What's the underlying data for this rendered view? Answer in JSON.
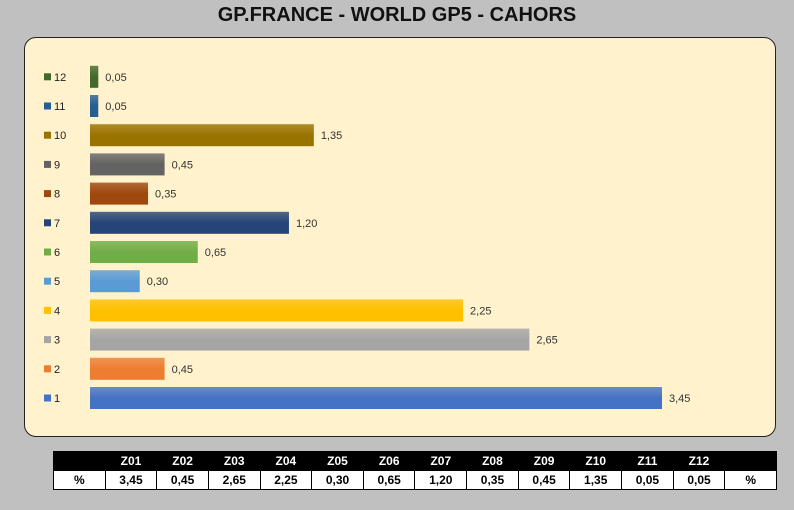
{
  "title": "GP.FRANCE - WORLD GP5  - CAHORS",
  "chart_data": {
    "type": "bar",
    "orientation": "horizontal",
    "categories": [
      "1",
      "2",
      "3",
      "4",
      "5",
      "6",
      "7",
      "8",
      "9",
      "10",
      "11",
      "12"
    ],
    "values": [
      3.45,
      0.45,
      2.65,
      2.25,
      0.3,
      0.65,
      1.2,
      0.35,
      0.45,
      1.35,
      0.05,
      0.05
    ],
    "data_labels": [
      "3,45",
      "0,45",
      "2,65",
      "2,25",
      "0,30",
      "0,65",
      "1,20",
      "0,35",
      "0,45",
      "1,35",
      "0,05",
      "0,05"
    ],
    "colors": [
      "#4472c4",
      "#ed7d31",
      "#a5a5a5",
      "#ffc000",
      "#5b9bd5",
      "#70ad47",
      "#264478",
      "#9e480e",
      "#636363",
      "#997300",
      "#255e91",
      "#43682b"
    ],
    "xlim": [
      0,
      3.45
    ],
    "legend_position": "left",
    "grid": false
  },
  "table": {
    "headers": [
      "",
      "Z01",
      "Z02",
      "Z03",
      "Z04",
      "Z05",
      "Z06",
      "Z07",
      "Z08",
      "Z09",
      "Z10",
      "Z11",
      "Z12",
      ""
    ],
    "row": [
      "%",
      "3,45",
      "0,45",
      "2,65",
      "2,25",
      "0,30",
      "0,65",
      "1,20",
      "0,35",
      "0,45",
      "1,35",
      "0,05",
      "0,05",
      "%"
    ]
  }
}
